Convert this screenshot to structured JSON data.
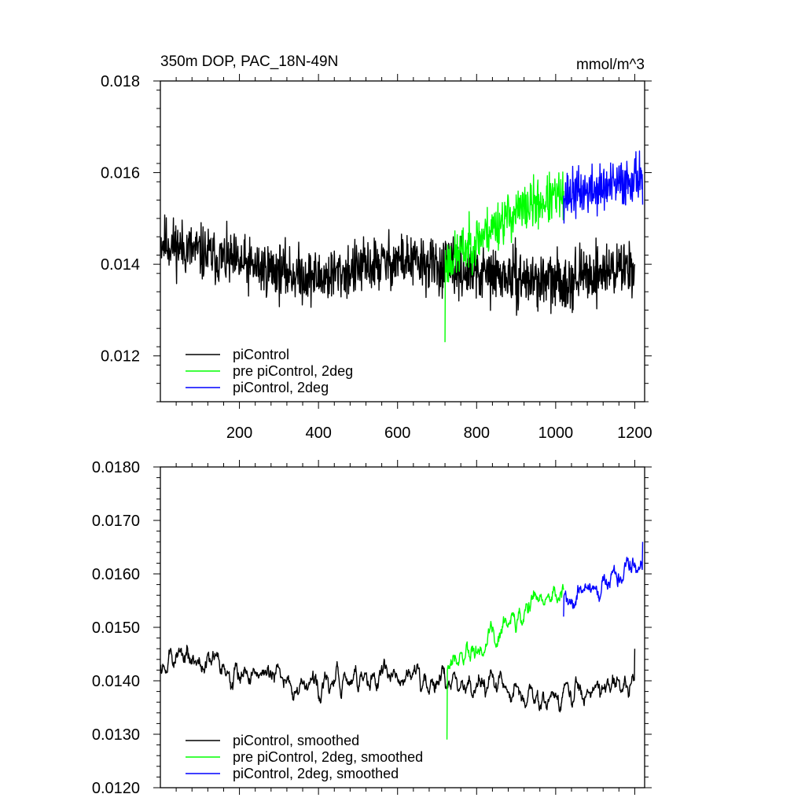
{
  "chart_data": [
    {
      "type": "line",
      "title": "350m DOP, PAC_18N-49N",
      "units": "mmol/m^3",
      "xlabel": "",
      "ylabel": "",
      "xlim": [
        0,
        1225
      ],
      "ylim": [
        0.011,
        0.018
      ],
      "yticks": [
        0.012,
        0.014,
        0.016,
        0.018
      ],
      "ytick_labels": [
        "0.012",
        "0.014",
        "0.016",
        "0.018"
      ],
      "xticks": [
        200,
        400,
        600,
        800,
        1000,
        1200
      ],
      "xtick_labels": [
        "200",
        "400",
        "600",
        "800",
        "1000",
        "1200"
      ],
      "legend_position": "bottom-left",
      "series": [
        {
          "name": "piControl",
          "color": "#000000",
          "x_start": 1,
          "x_end": 1200,
          "start": 0.0145,
          "end": 0.014,
          "mean_trend": [
            0.0145,
            0.014,
            0.0137,
            0.0141,
            0.0138,
            0.0136,
            0.014
          ],
          "noise": 0.0009,
          "seed": 11
        },
        {
          "name": "pre piControl, 2deg",
          "color": "#00ff00",
          "x_start": 720,
          "x_end": 1020,
          "start": 0.0123,
          "end": 0.0156,
          "mean_trend": [
            0.014,
            0.0145,
            0.015,
            0.0153,
            0.0155
          ],
          "noise": 0.0008,
          "seed": 23
        },
        {
          "name": "piControl, 2deg",
          "color": "#0000ff",
          "x_start": 1020,
          "x_end": 1220,
          "start": 0.0155,
          "end": 0.0153,
          "mean_trend": [
            0.0155,
            0.0156,
            0.0157,
            0.016
          ],
          "noise": 0.0008,
          "seed": 37
        }
      ]
    },
    {
      "type": "line",
      "title": "",
      "xlabel": "",
      "ylabel": "",
      "xlim": [
        0,
        1225
      ],
      "ylim": [
        0.012,
        0.018
      ],
      "yticks": [
        0.012,
        0.013,
        0.014,
        0.015,
        0.016,
        0.017,
        0.018
      ],
      "ytick_labels": [
        "0.0120",
        "0.0130",
        "0.0140",
        "0.0150",
        "0.0160",
        "0.0170",
        "0.0180"
      ],
      "xticks": [
        200,
        400,
        600,
        800,
        1000,
        1200
      ],
      "legend_position": "bottom-left",
      "series": [
        {
          "name": "piControl, smoothed",
          "color": "#000000",
          "x_start": 1,
          "x_end": 1200,
          "start": 0.0143,
          "end": 0.0146,
          "mean_trend": [
            0.0145,
            0.0142,
            0.0139,
            0.0141,
            0.014,
            0.0137,
            0.014
          ],
          "noise": 0.0005,
          "seed": 53
        },
        {
          "name": "pre piControl, 2deg, smoothed",
          "color": "#00ff00",
          "x_start": 725,
          "x_end": 1020,
          "start": 0.0129,
          "end": 0.0157,
          "mean_trend": [
            0.0142,
            0.0145,
            0.015,
            0.0155,
            0.0156
          ],
          "noise": 0.0005,
          "seed": 61
        },
        {
          "name": "piControl, 2deg, smoothed",
          "color": "#0000ff",
          "x_start": 1020,
          "x_end": 1220,
          "start": 0.0152,
          "end": 0.0166,
          "mean_trend": [
            0.0155,
            0.0157,
            0.0159,
            0.0162
          ],
          "noise": 0.0005,
          "seed": 71
        }
      ]
    }
  ]
}
